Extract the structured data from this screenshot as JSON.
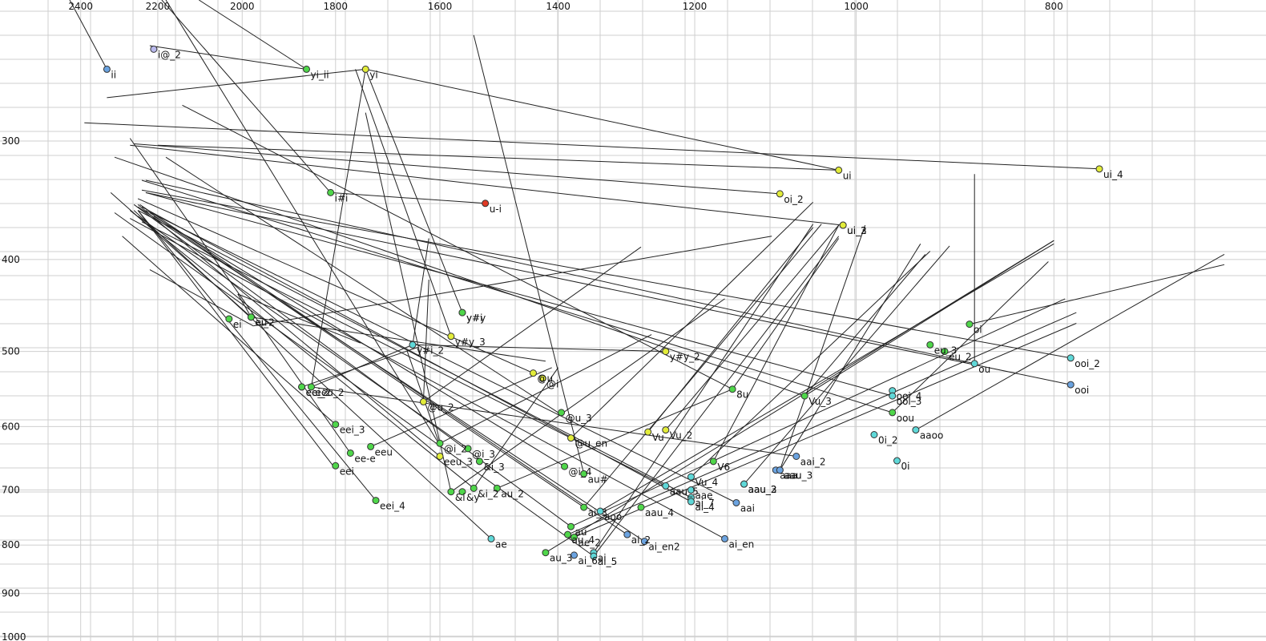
{
  "chart_data": {
    "type": "scatter",
    "title": "",
    "xlabel": "",
    "ylabel": "",
    "x_axis": {
      "reversed": true,
      "scale": "log",
      "range": [
        2490,
        660
      ],
      "ticks": [
        2400,
        2200,
        2000,
        1800,
        1600,
        1400,
        1200,
        1000,
        800
      ]
    },
    "y_axis": {
      "reversed": true,
      "scale": "log",
      "range": [
        213,
        1010
      ],
      "ticks": [
        300,
        400,
        500,
        600,
        700,
        800,
        900,
        1000
      ]
    },
    "grid": true,
    "legend": "none",
    "colors": {
      "yellow": "#e2ec3a",
      "green": "#4fd64a",
      "cyan": "#5fd8d8",
      "blue": "#6ba3e0",
      "red": "#e03a25",
      "lavender": "#b8b8ec"
    },
    "points": [
      {
        "label": "ii",
        "x": 2330,
        "y": 252,
        "color": "blue"
      },
      {
        "label": "i@_2",
        "x": 2210,
        "y": 240,
        "color": "lavender"
      },
      {
        "label": "yi_ii",
        "x": 1860,
        "y": 252,
        "color": "green"
      },
      {
        "label": "yi",
        "x": 1740,
        "y": 252,
        "color": "yellow"
      },
      {
        "label": "i#i",
        "x": 1810,
        "y": 340,
        "color": "green"
      },
      {
        "label": "u-i",
        "x": 1520,
        "y": 349,
        "color": "red"
      },
      {
        "label": "ui",
        "x": 1020,
        "y": 322,
        "color": "yellow"
      },
      {
        "label": "ui_4",
        "x": 760,
        "y": 321,
        "color": "yellow"
      },
      {
        "label": "oi_2",
        "x": 1090,
        "y": 341,
        "color": "yellow"
      },
      {
        "label": "ui_2",
        "x": 1015,
        "y": 368,
        "color": "yellow"
      },
      {
        "label": "ui_3",
        "x": 1015,
        "y": 368,
        "color": "yellow"
      },
      {
        "label": "y#i",
        "x": 1560,
        "y": 455,
        "color": "green"
      },
      {
        "label": "y#y",
        "x": 1560,
        "y": 455,
        "color": "green"
      },
      {
        "label": "y#y_3",
        "x": 1580,
        "y": 482,
        "color": "yellow"
      },
      {
        "label": "y#i_2",
        "x": 1650,
        "y": 492,
        "color": "cyan"
      },
      {
        "label": "y#y_2",
        "x": 1240,
        "y": 500,
        "color": "yellow"
      },
      {
        "label": "ei",
        "x": 2030,
        "y": 462,
        "color": "green"
      },
      {
        "label": "ei_2",
        "x": 1980,
        "y": 460,
        "color": "green"
      },
      {
        "label": "eu",
        "x": 1980,
        "y": 460,
        "color": "green"
      },
      {
        "label": "oi",
        "x": 880,
        "y": 468,
        "color": "green"
      },
      {
        "label": "eu_3",
        "x": 920,
        "y": 492,
        "color": "green"
      },
      {
        "label": "eu_2",
        "x": 905,
        "y": 500,
        "color": "green"
      },
      {
        "label": "ou",
        "x": 875,
        "y": 515,
        "color": "cyan"
      },
      {
        "label": "ooi_2",
        "x": 785,
        "y": 508,
        "color": "cyan"
      },
      {
        "label": "ooi",
        "x": 785,
        "y": 542,
        "color": "blue"
      },
      {
        "label": "@u",
        "x": 1440,
        "y": 527,
        "color": "yellow"
      },
      {
        "label": "@i",
        "x": 1425,
        "y": 534,
        "color": "yellow"
      },
      {
        "label": "eeu_2",
        "x": 1850,
        "y": 545,
        "color": "green"
      },
      {
        "label": "ee_2",
        "x": 1870,
        "y": 545,
        "color": "green"
      },
      {
        "label": "eei_2",
        "x": 1870,
        "y": 545,
        "color": "green"
      },
      {
        "label": "8u",
        "x": 1150,
        "y": 548,
        "color": "green"
      },
      {
        "label": "ooi_4",
        "x": 960,
        "y": 550,
        "color": "cyan"
      },
      {
        "label": "Vu_3",
        "x": 1060,
        "y": 557,
        "color": "green"
      },
      {
        "label": "ooi_3",
        "x": 960,
        "y": 557,
        "color": "cyan"
      },
      {
        "label": "@u_2",
        "x": 1630,
        "y": 565,
        "color": "yellow"
      },
      {
        "label": "@u_3",
        "x": 1395,
        "y": 580,
        "color": "green"
      },
      {
        "label": "oou",
        "x": 960,
        "y": 580,
        "color": "green"
      },
      {
        "label": "eei_3",
        "x": 1800,
        "y": 597,
        "color": "green"
      },
      {
        "label": "Vu",
        "x": 1265,
        "y": 608,
        "color": "yellow"
      },
      {
        "label": "Vu_2",
        "x": 1240,
        "y": 605,
        "color": "yellow"
      },
      {
        "label": "aaoo",
        "x": 935,
        "y": 605,
        "color": "cyan"
      },
      {
        "label": "0i_2",
        "x": 980,
        "y": 612,
        "color": "cyan"
      },
      {
        "label": "@u_en",
        "x": 1380,
        "y": 617,
        "color": "yellow"
      },
      {
        "label": "@i_2",
        "x": 1600,
        "y": 625,
        "color": "green"
      },
      {
        "label": "eeu",
        "x": 1730,
        "y": 630,
        "color": "green"
      },
      {
        "label": "@i_3",
        "x": 1550,
        "y": 633,
        "color": "green"
      },
      {
        "label": "ee-e",
        "x": 1770,
        "y": 640,
        "color": "green"
      },
      {
        "label": "eeu_3",
        "x": 1600,
        "y": 645,
        "color": "yellow"
      },
      {
        "label": "&i_3",
        "x": 1530,
        "y": 653,
        "color": "green"
      },
      {
        "label": "V6",
        "x": 1175,
        "y": 653,
        "color": "green"
      },
      {
        "label": "aai_2",
        "x": 1070,
        "y": 645,
        "color": "blue"
      },
      {
        "label": "0i",
        "x": 955,
        "y": 652,
        "color": "cyan"
      },
      {
        "label": "eei",
        "x": 1800,
        "y": 660,
        "color": "green"
      },
      {
        "label": "@i_4",
        "x": 1390,
        "y": 661,
        "color": "green"
      },
      {
        "label": "aau",
        "x": 1090,
        "y": 667,
        "color": "blue"
      },
      {
        "label": "aaa",
        "x": 1095,
        "y": 667,
        "color": "blue"
      },
      {
        "label": "aau_3",
        "x": 1090,
        "y": 667,
        "color": "blue"
      },
      {
        "label": "au#",
        "x": 1360,
        "y": 673,
        "color": "green"
      },
      {
        "label": "Vu_4",
        "x": 1205,
        "y": 678,
        "color": "cyan"
      },
      {
        "label": "aau_2",
        "x": 1135,
        "y": 690,
        "color": "cyan"
      },
      {
        "label": "aau_3",
        "x": 1135,
        "y": 690,
        "color": "cyan"
      },
      {
        "label": "aau_5",
        "x": 1240,
        "y": 693,
        "color": "cyan"
      },
      {
        "label": "aae",
        "x": 1205,
        "y": 700,
        "color": "cyan"
      },
      {
        "label": "&i",
        "x": 1580,
        "y": 703,
        "color": "green"
      },
      {
        "label": "&y",
        "x": 1560,
        "y": 703,
        "color": "green"
      },
      {
        "label": "&i_2",
        "x": 1540,
        "y": 697,
        "color": "green"
      },
      {
        "label": "au_2",
        "x": 1500,
        "y": 697,
        "color": "green"
      },
      {
        "label": "ai_7",
        "x": 1205,
        "y": 713,
        "color": "cyan"
      },
      {
        "label": "ai_4",
        "x": 1205,
        "y": 720,
        "color": "cyan"
      },
      {
        "label": "aai",
        "x": 1145,
        "y": 722,
        "color": "blue"
      },
      {
        "label": "eei_4",
        "x": 1720,
        "y": 718,
        "color": "green"
      },
      {
        "label": "aau_4",
        "x": 1275,
        "y": 730,
        "color": "green"
      },
      {
        "label": "ai_3",
        "x": 1360,
        "y": 730,
        "color": "green"
      },
      {
        "label": "aoo",
        "x": 1335,
        "y": 737,
        "color": "cyan"
      },
      {
        "label": "au",
        "x": 1380,
        "y": 765,
        "color": "green"
      },
      {
        "label": "au_4",
        "x": 1385,
        "y": 780,
        "color": "green"
      },
      {
        "label": "ae_2",
        "x": 1375,
        "y": 785,
        "color": "green"
      },
      {
        "label": "ai_2",
        "x": 1295,
        "y": 780,
        "color": "blue"
      },
      {
        "label": "ai_en2",
        "x": 1270,
        "y": 793,
        "color": "blue"
      },
      {
        "label": "ai_en",
        "x": 1160,
        "y": 788,
        "color": "blue"
      },
      {
        "label": "ae",
        "x": 1510,
        "y": 788,
        "color": "cyan"
      },
      {
        "label": "au_3",
        "x": 1420,
        "y": 815,
        "color": "green"
      },
      {
        "label": "ai",
        "x": 1345,
        "y": 815,
        "color": "cyan"
      },
      {
        "label": "ai_6",
        "x": 1375,
        "y": 820,
        "color": "blue"
      },
      {
        "label": "ai_5",
        "x": 1345,
        "y": 822,
        "color": "cyan"
      }
    ],
    "trajectories": [
      [
        [
          2430,
          213
        ],
        [
          2330,
          252
        ]
      ],
      [
        [
          2220,
          238
        ],
        [
          1860,
          252
        ]
      ],
      [
        [
          2330,
          270
        ],
        [
          1740,
          252
        ]
      ],
      [
        [
          1740,
          252
        ],
        [
          1020,
          322
        ]
      ],
      [
        [
          2190,
          213
        ],
        [
          1810,
          340
        ]
      ],
      [
        [
          1810,
          340
        ],
        [
          1520,
          349
        ]
      ],
      [
        [
          2390,
          287
        ],
        [
          760,
          321
        ]
      ],
      [
        [
          2200,
          303
        ],
        [
          1020,
          322
        ]
      ],
      [
        [
          2260,
          302
        ],
        [
          1090,
          341
        ]
      ],
      [
        [
          2270,
          303
        ],
        [
          1015,
          368
        ]
      ],
      [
        [
          2180,
          213
        ],
        [
          1600,
          628
        ]
      ],
      [
        [
          2100,
          213
        ],
        [
          1860,
          252
        ]
      ],
      [
        [
          1740,
          252
        ],
        [
          1850,
          545
        ]
      ],
      [
        [
          1740,
          252
        ],
        [
          1560,
          455
        ]
      ],
      [
        [
          1740,
          280
        ],
        [
          1580,
          703
        ]
      ],
      [
        [
          1760,
          252
        ],
        [
          1580,
          482
        ]
      ],
      [
        [
          1540,
          232
        ],
        [
          1360,
          673
        ]
      ],
      [
        [
          1620,
          380
        ],
        [
          1650,
          492
        ]
      ],
      [
        [
          1650,
          492
        ],
        [
          1240,
          500
        ]
      ],
      [
        [
          2310,
          312
        ],
        [
          1060,
          557
        ]
      ],
      [
        [
          2140,
          275
        ],
        [
          1150,
          548
        ]
      ],
      [
        [
          2270,
          298
        ],
        [
          1770,
          640
        ]
      ],
      [
        [
          2180,
          312
        ],
        [
          1400,
          580
        ]
      ],
      [
        [
          2230,
          330
        ],
        [
          875,
          515
        ]
      ],
      [
        [
          2240,
          338
        ],
        [
          785,
          508
        ]
      ],
      [
        [
          2230,
          340
        ],
        [
          785,
          542
        ]
      ],
      [
        [
          2230,
          340
        ],
        [
          960,
          557
        ]
      ],
      [
        [
          2240,
          330
        ],
        [
          960,
          580
        ]
      ],
      [
        [
          2320,
          340
        ],
        [
          1980,
          460
        ]
      ],
      [
        [
          2290,
          378
        ],
        [
          1800,
          597
        ]
      ],
      [
        [
          2220,
          410
        ],
        [
          1975,
          470
        ]
      ],
      [
        [
          1975,
          470
        ],
        [
          1100,
          378
        ]
      ],
      [
        [
          2310,
          357
        ],
        [
          1345,
          822
        ]
      ],
      [
        [
          2260,
          350
        ],
        [
          1380,
          765
        ]
      ],
      [
        [
          2270,
          355
        ],
        [
          1540,
          697
        ]
      ],
      [
        [
          2250,
          350
        ],
        [
          1600,
          645
        ]
      ],
      [
        [
          2250,
          345
        ],
        [
          1440,
          527
        ]
      ],
      [
        [
          2250,
          355
        ],
        [
          1805,
          660
        ]
      ],
      [
        [
          2250,
          355
        ],
        [
          1720,
          718
        ]
      ],
      [
        [
          2260,
          355
        ],
        [
          1510,
          788
        ]
      ],
      [
        [
          2250,
          360
        ],
        [
          1550,
          633
        ]
      ],
      [
        [
          2270,
          362
        ],
        [
          1160,
          788
        ]
      ],
      [
        [
          2240,
          352
        ],
        [
          1205,
          720
        ]
      ],
      [
        [
          2250,
          355
        ],
        [
          1205,
          713
        ]
      ],
      [
        [
          2230,
          355
        ],
        [
          1145,
          722
        ]
      ],
      [
        [
          2210,
          360
        ],
        [
          1390,
          661
        ]
      ],
      [
        [
          2240,
          365
        ],
        [
          1240,
          693
        ]
      ],
      [
        [
          2220,
          357
        ],
        [
          1360,
          730
        ]
      ],
      [
        [
          2245,
          350
        ],
        [
          1295,
          780
        ]
      ],
      [
        [
          2250,
          352
        ],
        [
          1270,
          793
        ]
      ],
      [
        [
          2010,
          435
        ],
        [
          1980,
          460
        ]
      ],
      [
        [
          2010,
          435
        ],
        [
          1750,
          490
        ]
      ],
      [
        [
          1980,
          460
        ],
        [
          1420,
          512
        ]
      ],
      [
        [
          1620,
          420
        ],
        [
          1630,
          565
        ]
      ],
      [
        [
          1660,
          500
        ],
        [
          1600,
          628
        ]
      ],
      [
        [
          1630,
          565
        ],
        [
          1275,
          388
        ]
      ],
      [
        [
          1650,
          492
        ],
        [
          1850,
          545
        ]
      ],
      [
        [
          1870,
          545
        ],
        [
          1640,
          495
        ]
      ],
      [
        [
          1850,
          545
        ],
        [
          1070,
          645
        ]
      ],
      [
        [
          1730,
          630
        ],
        [
          1410,
          520
        ]
      ],
      [
        [
          1600,
          625
        ],
        [
          1260,
          480
        ]
      ],
      [
        [
          1265,
          608
        ],
        [
          1050,
          370
        ]
      ],
      [
        [
          1240,
          605
        ],
        [
          1020,
          368
        ]
      ],
      [
        [
          1380,
          617
        ],
        [
          1050,
          348
        ]
      ],
      [
        [
          1205,
          678
        ],
        [
          920,
          392
        ]
      ],
      [
        [
          1135,
          690
        ],
        [
          900,
          387
        ]
      ],
      [
        [
          1090,
          667
        ],
        [
          990,
          368
        ]
      ],
      [
        [
          1090,
          667
        ],
        [
          930,
          385
        ]
      ],
      [
        [
          1060,
          557
        ],
        [
          925,
          395
        ]
      ],
      [
        [
          1060,
          557
        ],
        [
          800,
          382
        ]
      ],
      [
        [
          960,
          580
        ],
        [
          805,
          402
        ]
      ],
      [
        [
          935,
          605
        ],
        [
          660,
          395
        ]
      ],
      [
        [
          880,
          468
        ],
        [
          660,
          405
        ]
      ],
      [
        [
          875,
          325
        ],
        [
          875,
          515
        ]
      ],
      [
        [
          1150,
          548
        ],
        [
          1020,
          380
        ]
      ],
      [
        [
          1175,
          653
        ],
        [
          1020,
          368
        ]
      ],
      [
        [
          1335,
          737
        ],
        [
          800,
          385
        ]
      ],
      [
        [
          1380,
          765
        ],
        [
          790,
          440
        ]
      ],
      [
        [
          1385,
          780
        ],
        [
          780,
          455
        ]
      ],
      [
        [
          1375,
          785
        ],
        [
          780,
          467
        ]
      ],
      [
        [
          1420,
          815
        ],
        [
          800,
          382
        ]
      ],
      [
        [
          1360,
          730
        ],
        [
          1040,
          367
        ]
      ],
      [
        [
          1345,
          815
        ],
        [
          1050,
          367
        ]
      ],
      [
        [
          1345,
          822
        ],
        [
          1020,
          378
        ]
      ],
      [
        [
          1500,
          697
        ],
        [
          1150,
          548
        ]
      ],
      [
        [
          1580,
          703
        ],
        [
          1160,
          440
        ]
      ],
      [
        [
          1540,
          697
        ],
        [
          1400,
          520
        ]
      ]
    ]
  }
}
